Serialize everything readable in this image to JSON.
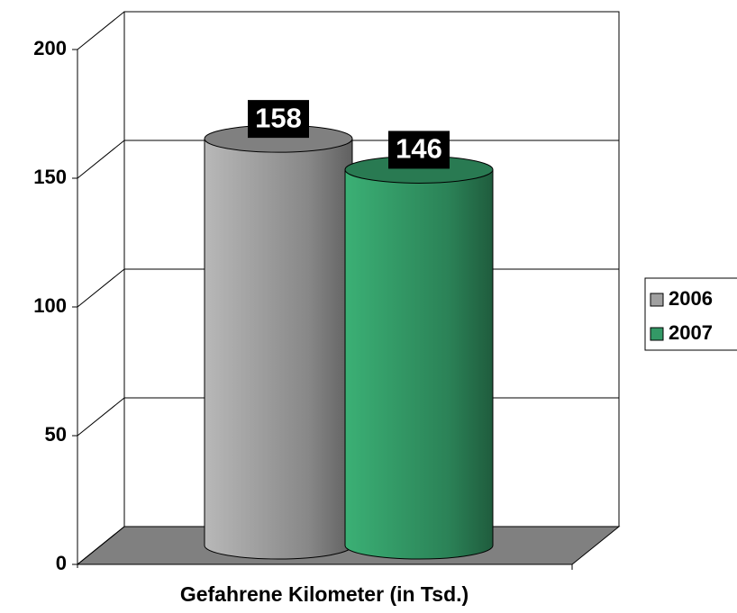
{
  "chart_data": {
    "type": "cylinder",
    "x_label": "Gefahrene Kilometer (in Tsd.)",
    "series": [
      {
        "name": "2006",
        "color": "#a0a0a0",
        "values": [
          158
        ]
      },
      {
        "name": "2007",
        "color": "#339966",
        "values": [
          146
        ]
      }
    ],
    "ylim": [
      0,
      200
    ],
    "yticks": [
      0,
      50,
      100,
      150,
      200
    ],
    "grid": true,
    "legend": "right"
  }
}
